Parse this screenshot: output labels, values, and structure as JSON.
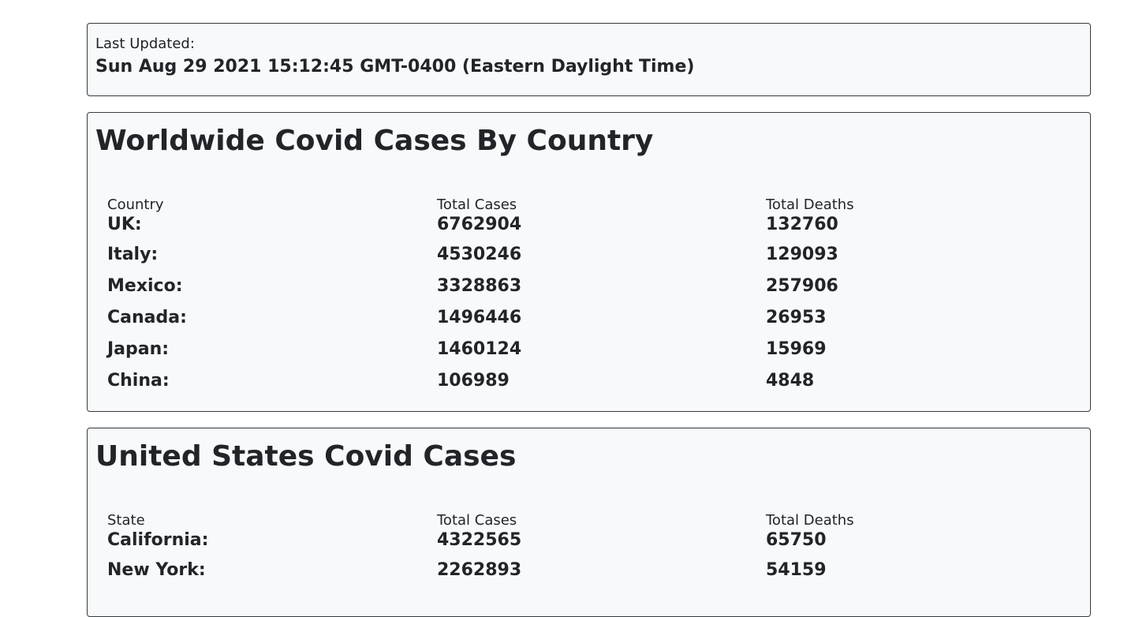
{
  "updated": {
    "label": "Last Updated:",
    "value": "Sun Aug 29 2021 15:12:45 GMT-0400 (Eastern Daylight Time)"
  },
  "world": {
    "title": "Worldwide Covid Cases By Country",
    "headers": [
      "Country",
      "Total Cases",
      "Total Deaths"
    ],
    "rows": [
      {
        "name": "UK:",
        "cases": "6762904",
        "deaths": "132760"
      },
      {
        "name": "Italy:",
        "cases": "4530246",
        "deaths": "129093"
      },
      {
        "name": "Mexico:",
        "cases": "3328863",
        "deaths": "257906"
      },
      {
        "name": "Canada:",
        "cases": "1496446",
        "deaths": "26953"
      },
      {
        "name": "Japan:",
        "cases": "1460124",
        "deaths": "15969"
      },
      {
        "name": "China:",
        "cases": "106989",
        "deaths": "4848"
      }
    ]
  },
  "us": {
    "title": "United States Covid Cases",
    "headers": [
      "State",
      "Total Cases",
      "Total Deaths"
    ],
    "rows": [
      {
        "name": "California:",
        "cases": "4322565",
        "deaths": "65750"
      },
      {
        "name": "New York:",
        "cases": "2262893",
        "deaths": "54159"
      }
    ]
  }
}
